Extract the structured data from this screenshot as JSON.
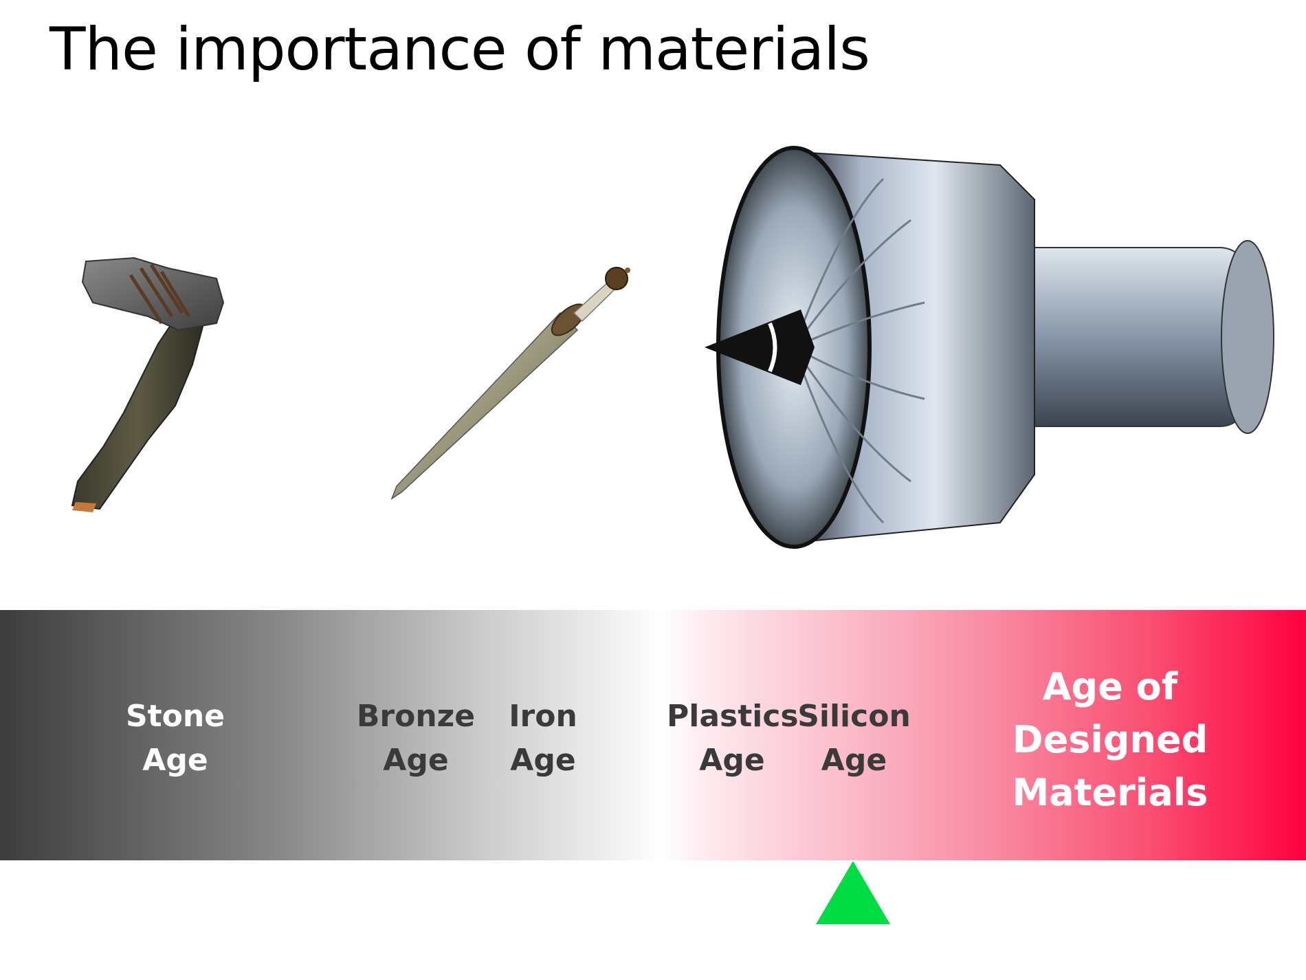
{
  "slide": {
    "title": "The importance of materials"
  },
  "timeline": {
    "ages": [
      {
        "line1": "Stone",
        "line2": "Age"
      },
      {
        "line1": "Bronze",
        "line2": "Age"
      },
      {
        "line1": "Iron",
        "line2": "Age"
      },
      {
        "line1": "Plastics",
        "line2": "Age"
      },
      {
        "line1": "Silicon",
        "line2": "Age"
      },
      {
        "line1": "Age of",
        "line2": "Designed",
        "line3": "Materials"
      }
    ],
    "marker_color": "#00dd44",
    "band_colors": {
      "start": "#3d3d3d",
      "middle": "#ffffff",
      "end": "#ff0040"
    }
  },
  "illustrations": {
    "icons": [
      "stone-hammer-icon",
      "sword-icon",
      "jet-engine-icon"
    ]
  }
}
